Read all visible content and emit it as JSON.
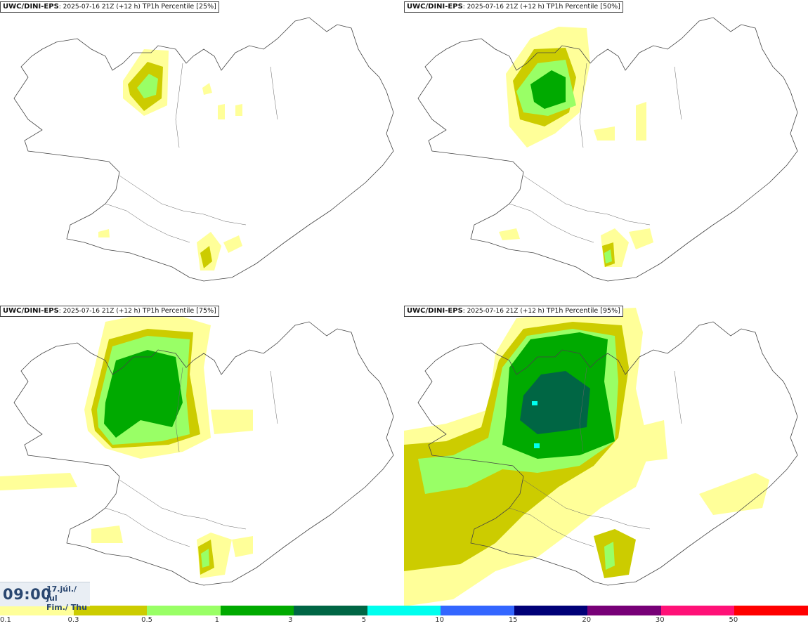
{
  "panels": [
    {
      "model": "UWC/DINI-EPS",
      "info": "2025-07-16 21Z (+12 h)",
      "param": "TP1h Percentile [25%]"
    },
    {
      "model": "UWC/DINI-EPS",
      "info": "2025-07-16 21Z (+12 h)",
      "param": "TP1h Percentile [50%]"
    },
    {
      "model": "UWC/DINI-EPS",
      "info": "2025-07-16 21Z (+12 h)",
      "param": "TP1h Percentile [75%]"
    },
    {
      "model": "UWC/DINI-EPS",
      "info": "2025-07-16 21Z (+12 h)",
      "param": "TP1h Percentile [95%]"
    }
  ],
  "time": {
    "main": "09:00",
    "date_line1": "17.júl./ Jul",
    "date_line2": "Fim./ Thu"
  },
  "legend": {
    "labels": [
      "0.1",
      "0.3",
      "0.5",
      "1",
      "3",
      "5",
      "10",
      "15",
      "20",
      "30",
      "50"
    ],
    "colors": [
      "#ffff99",
      "#cccc00",
      "#99ff66",
      "#00aa00",
      "#006644",
      "#00ffee",
      "#3366ff",
      "#000077",
      "#770077",
      "#ff1177",
      "#ff0000"
    ]
  }
}
